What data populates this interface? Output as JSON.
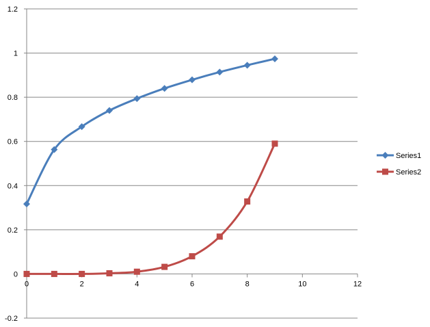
{
  "chart_data": {
    "type": "line",
    "smooth": true,
    "title": "",
    "xlabel": "",
    "ylabel": "",
    "xlim": [
      0,
      12
    ],
    "ylim": [
      -0.2,
      1.2
    ],
    "x_ticks": [
      0,
      2,
      4,
      6,
      8,
      10,
      12
    ],
    "y_ticks": [
      -0.2,
      0,
      0.2,
      0.4,
      0.6,
      0.8,
      1,
      1.2
    ],
    "grid": {
      "horizontal": true,
      "vertical": false
    },
    "legend_position": "right",
    "series": [
      {
        "name": "Series1",
        "color": "#4A7EBB",
        "marker": "diamond",
        "x": [
          0,
          1,
          2,
          3,
          4,
          5,
          6,
          7,
          8,
          9
        ],
        "y": [
          0.317,
          0.563,
          0.667,
          0.74,
          0.794,
          0.84,
          0.879,
          0.914,
          0.945,
          0.974
        ]
      },
      {
        "name": "Series2",
        "color": "#BE4B48",
        "marker": "square",
        "x": [
          0,
          1,
          2,
          3,
          4,
          5,
          6,
          7,
          8,
          9
        ],
        "y": [
          0.0,
          0.0,
          0.0,
          0.003,
          0.01,
          0.032,
          0.08,
          0.169,
          0.328,
          0.59
        ]
      }
    ]
  }
}
